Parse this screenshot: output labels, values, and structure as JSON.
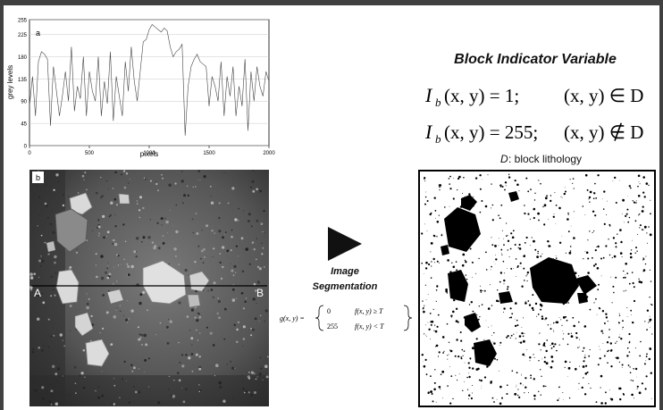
{
  "panel_a": {
    "letter": "a",
    "x_axis_label": "pixels",
    "y_axis_label": "grey levels",
    "x_ticks": [
      "0",
      "500",
      "1000",
      "1500",
      "2000"
    ],
    "y_ticks": [
      "0",
      "45",
      "90",
      "135",
      "180",
      "225",
      "255"
    ]
  },
  "panel_b": {
    "letter": "b",
    "section_start": "A",
    "section_end": "B"
  },
  "segmentation": {
    "label_line1": "Image",
    "label_line2": "Segmentation",
    "equation_lhs": "g(x, y) =",
    "case1_value": "0",
    "case1_condition": "f(x, y) ≥ T",
    "case2_value": "255",
    "case2_condition": "f(x, y) < T"
  },
  "indicator": {
    "title": "Block Indicator Variable",
    "eq1_lhs": "I",
    "eq1_sub": "b",
    "eq1_rest": "(x, y) = 1;",
    "eq1_cond": "(x, y) ∈ D",
    "eq2_lhs": "I",
    "eq2_sub": "b",
    "eq2_rest": "(x, y) = 255;",
    "eq2_cond": "(x, y) ∉ D",
    "caption_var": "D",
    "caption_text": ": block lithology"
  },
  "colors": {
    "frame": "#404040",
    "photo_dark": "#3a3a3a",
    "block_light": "#d6d6d6",
    "segment_black": "#000000"
  },
  "chart_data": {
    "type": "line",
    "title": "",
    "xlabel": "pixels",
    "ylabel": "grey levels",
    "xlim": [
      0,
      2000
    ],
    "ylim": [
      0,
      255
    ],
    "x_ticks": [
      0,
      500,
      1000,
      1500,
      2000
    ],
    "y_ticks": [
      0,
      45,
      90,
      135,
      180,
      225,
      255
    ],
    "grid": true,
    "series": [
      {
        "values_x": [
          0,
          25,
          50,
          75,
          100,
          125,
          150,
          175,
          200,
          225,
          250,
          275,
          300,
          325,
          350,
          375,
          400,
          425,
          450,
          475,
          500,
          525,
          550,
          575,
          600,
          625,
          650,
          675,
          700,
          725,
          750,
          775,
          800,
          825,
          850,
          875,
          900,
          925,
          950,
          975,
          1000,
          1025,
          1050,
          1075,
          1100,
          1125,
          1150,
          1175,
          1200,
          1225,
          1250,
          1275,
          1300,
          1325,
          1350,
          1375,
          1400,
          1425,
          1450,
          1475,
          1500,
          1525,
          1550,
          1575,
          1600,
          1625,
          1650,
          1675,
          1700,
          1725,
          1750,
          1775,
          1800,
          1825,
          1850,
          1875,
          1900,
          1925,
          1950,
          1975,
          2000
        ],
        "values_y": [
          80,
          140,
          60,
          170,
          190,
          185,
          175,
          40,
          160,
          110,
          60,
          100,
          150,
          90,
          200,
          70,
          120,
          95,
          180,
          60,
          150,
          110,
          90,
          180,
          60,
          130,
          85,
          190,
          50,
          140,
          100,
          60,
          170,
          110,
          200,
          130,
          90,
          150,
          210,
          215,
          235,
          245,
          240,
          235,
          230,
          238,
          232,
          200,
          180,
          190,
          195,
          205,
          20,
          120,
          160,
          175,
          185,
          170,
          165,
          160,
          80,
          140,
          120,
          90,
          170,
          60,
          140,
          100,
          160,
          60,
          120,
          80,
          175,
          30,
          150,
          90,
          160,
          120,
          100,
          150,
          130
        ]
      }
    ]
  }
}
